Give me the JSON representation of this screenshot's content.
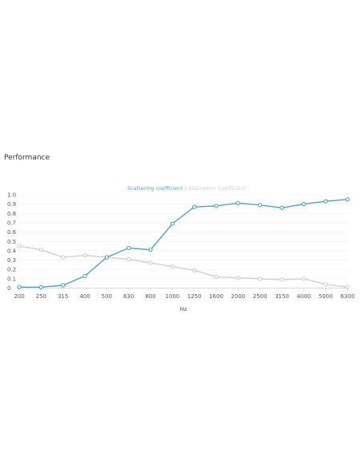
{
  "section": {
    "title": "Performance"
  },
  "colors": {
    "scattering": "#4aa7b8",
    "absorption": "#cfcfcf",
    "grid": "#eeeeee"
  },
  "chart_data": {
    "type": "line",
    "title": "",
    "xlabel": "Hz",
    "ylabel": "",
    "categories": [
      "200",
      "250",
      "315",
      "400",
      "500",
      "630",
      "800",
      "1000",
      "1250",
      "1600",
      "2000",
      "2500",
      "3150",
      "4000",
      "5000",
      "6300"
    ],
    "ylim": [
      0,
      1.0
    ],
    "yticks": [
      "0",
      "0.1",
      "0.2",
      "0.3",
      "0.4",
      "0.5",
      "0.6",
      "0.7",
      "0.8",
      "0.9",
      "1.0"
    ],
    "grid": true,
    "legend_position": "top-center",
    "legend_separator": " / ",
    "series": [
      {
        "name": "Scattering coefficient",
        "color": "#4aa7b8",
        "values": [
          0.01,
          0.01,
          0.03,
          0.13,
          0.33,
          0.43,
          0.41,
          0.69,
          0.87,
          0.88,
          0.91,
          0.89,
          0.86,
          0.9,
          0.93,
          0.95
        ]
      },
      {
        "name": "Absorption Coefficient",
        "color": "#cfcfcf",
        "values": [
          0.45,
          0.41,
          0.33,
          0.35,
          0.33,
          0.31,
          0.27,
          0.23,
          0.19,
          0.12,
          0.11,
          0.1,
          0.09,
          0.1,
          0.04,
          0.01
        ]
      }
    ]
  }
}
